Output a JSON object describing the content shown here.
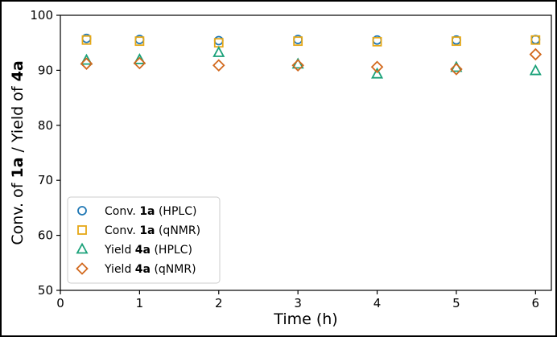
{
  "chart_data": {
    "type": "scatter",
    "xlabel": "Time (h)",
    "ylabel_parts": [
      {
        "text": "Conv. of ",
        "bold": false
      },
      {
        "text": "1a",
        "bold": true
      },
      {
        "text": " / Yield of ",
        "bold": false
      },
      {
        "text": "4a",
        "bold": true
      }
    ],
    "xlim": [
      0,
      6.2
    ],
    "ylim": [
      50,
      100
    ],
    "x_ticks": [
      0,
      1,
      2,
      3,
      4,
      5,
      6
    ],
    "y_ticks": [
      50,
      60,
      70,
      80,
      90,
      100
    ],
    "grid": false,
    "legend_position": "lower-left",
    "x": [
      0.33,
      1,
      2,
      3,
      4,
      5,
      6
    ],
    "series": [
      {
        "marker": "circle",
        "color": "#1f77b4",
        "legend_parts": [
          {
            "text": "Conv. ",
            "bold": false
          },
          {
            "text": "1a",
            "bold": true
          },
          {
            "text": " (HPLC)",
            "bold": false
          }
        ],
        "values": [
          95.8,
          95.6,
          95.4,
          95.6,
          95.5,
          95.5,
          95.6
        ]
      },
      {
        "marker": "square",
        "color": "#e6a817",
        "legend_parts": [
          {
            "text": "Conv. ",
            "bold": false
          },
          {
            "text": "1a",
            "bold": true
          },
          {
            "text": " (qNMR)",
            "bold": false
          }
        ],
        "values": [
          95.5,
          95.3,
          95.0,
          95.3,
          95.2,
          95.3,
          95.5
        ]
      },
      {
        "marker": "triangle",
        "color": "#1aa179",
        "legend_parts": [
          {
            "text": "Yield ",
            "bold": false
          },
          {
            "text": "4a",
            "bold": true
          },
          {
            "text": " (HPLC)",
            "bold": false
          }
        ],
        "values": [
          91.8,
          91.9,
          93.2,
          91.1,
          89.3,
          90.5,
          89.9
        ]
      },
      {
        "marker": "diamond",
        "color": "#d2691e",
        "legend_parts": [
          {
            "text": "Yield ",
            "bold": false
          },
          {
            "text": "4a",
            "bold": true
          },
          {
            "text": " (qNMR)",
            "bold": false
          }
        ],
        "values": [
          91.2,
          91.3,
          90.9,
          90.9,
          90.6,
          90.2,
          92.9
        ]
      }
    ]
  }
}
